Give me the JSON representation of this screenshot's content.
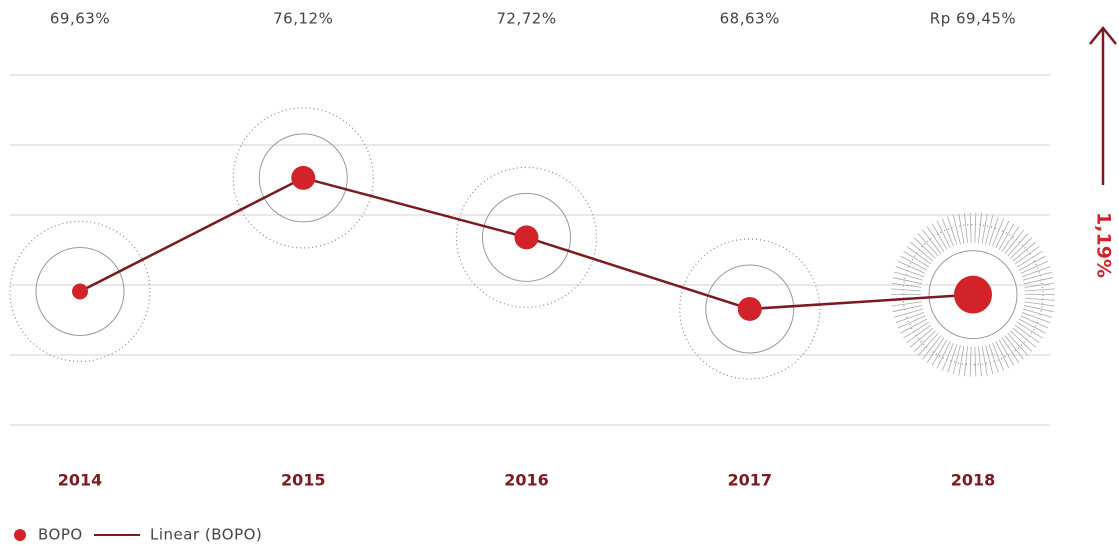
{
  "chart_data": {
    "type": "line",
    "categories": [
      "2014",
      "2015",
      "2016",
      "2017",
      "2018"
    ],
    "series": [
      {
        "name": "BOPO",
        "color": "#d2232a",
        "values": [
          69.63,
          76.12,
          72.72,
          68.63,
          69.45
        ],
        "value_labels": [
          "69,63%",
          "76,12%",
          "72,72%",
          "68,63%",
          "Rp 69,45%"
        ]
      }
    ],
    "trend_name": "Linear (BOPO)",
    "trend_color": "#7b1a1f",
    "annotation": "1,19%",
    "ylim": [
      62,
      82
    ],
    "yticks": [
      62,
      66,
      70,
      74,
      78,
      82
    ],
    "grid": true
  }
}
